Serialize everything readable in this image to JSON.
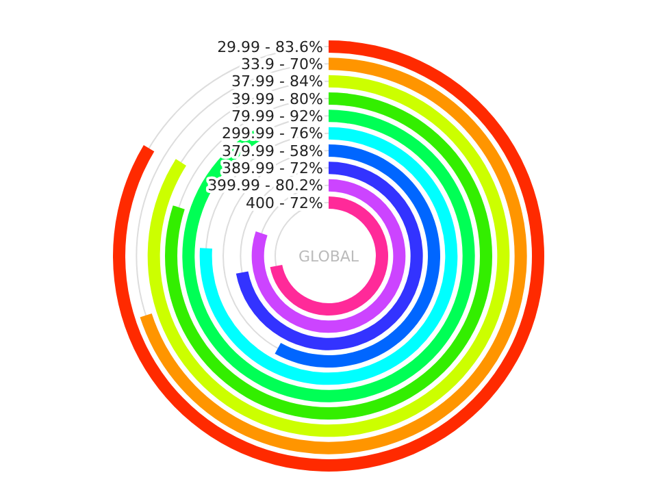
{
  "chart_data": {
    "type": "other",
    "categories": [
      "29.99 -",
      "33.9 -",
      "37.99 -",
      "39.99 -",
      "79.99 -",
      "299.99 -",
      "379.99 -",
      "389.99 -",
      "399.99 -",
      "400 -"
    ],
    "value_labels": [
      "83.6%",
      "70%",
      "84%",
      "80%",
      "92%",
      "76%",
      "58%",
      "72%",
      "80.2%",
      "72%"
    ],
    "values": [
      83.6,
      70,
      84,
      80,
      92,
      76,
      58,
      72,
      80.2,
      72
    ],
    "colors": [
      "#ff2a00",
      "#ff9500",
      "#ccff00",
      "#33ee00",
      "#00ff55",
      "#00ffff",
      "#0066ff",
      "#3333ff",
      "#cc44ff",
      "#ff2a99"
    ],
    "annotations": [
      "GLOBAL"
    ]
  }
}
